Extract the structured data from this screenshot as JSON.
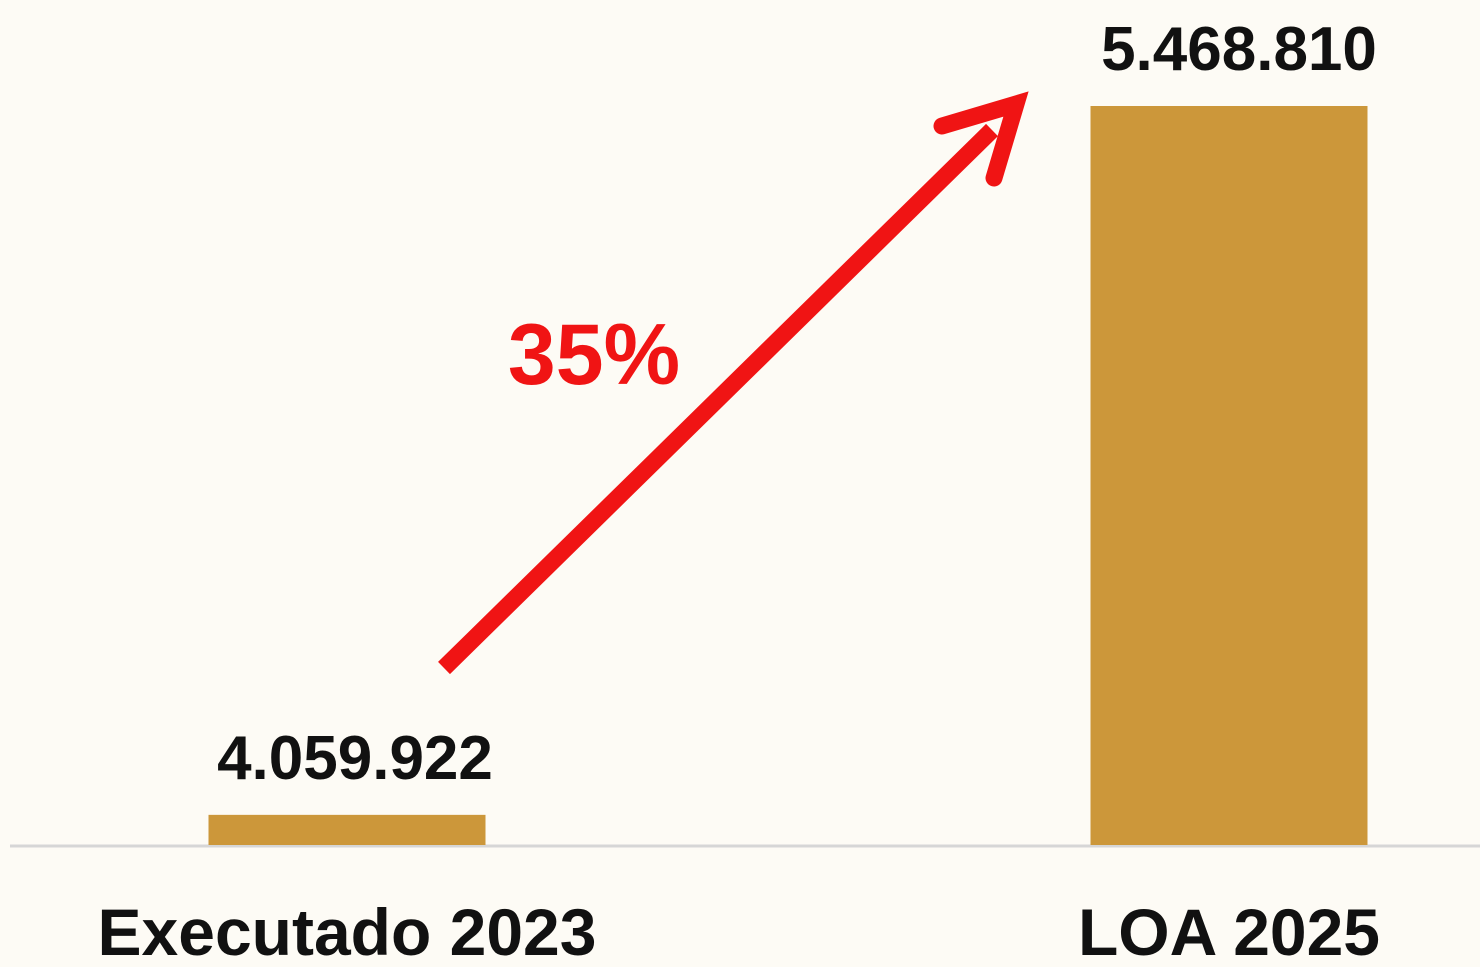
{
  "chart_data": {
    "type": "bar",
    "categories": [
      "Executado 2023",
      "LOA 2025"
    ],
    "values": [
      4059922,
      5468810
    ],
    "value_labels": [
      "4.059.922",
      "5.468.810"
    ],
    "ylim": [
      4000000,
      5468810
    ],
    "bar_color": "#cc973a",
    "annotation": {
      "label": "35%",
      "color": "#f01414",
      "shape": "arrow",
      "from": "Executado 2023",
      "to": "LOA 2025"
    },
    "grid": false,
    "legend": "none"
  }
}
